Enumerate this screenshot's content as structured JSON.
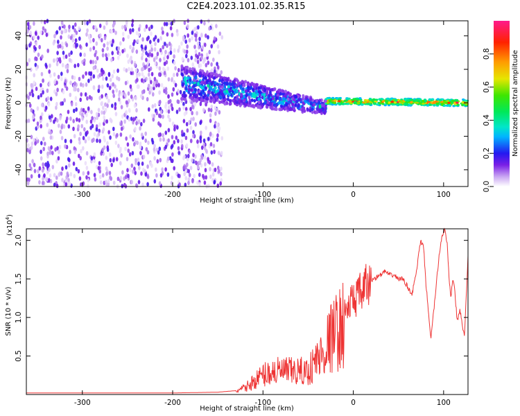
{
  "title": "C2E4.2023.101.02.35.R15",
  "chart_data": [
    {
      "type": "heatmap",
      "xlabel": "Height of straight line (km)",
      "ylabel": "Frequency (Hz)",
      "xlim": [
        -362,
        127
      ],
      "ylim": [
        -50,
        49
      ],
      "xticks": [
        -300,
        -200,
        -100,
        0,
        100
      ],
      "xtick_labels": [
        "-300",
        "-200",
        "-100",
        "0",
        "100"
      ],
      "yticks": [
        -40,
        -20,
        0,
        20,
        40
      ],
      "ytick_labels": [
        "-40",
        "-20",
        "0",
        "20",
        "40"
      ],
      "colorbar": {
        "label": "Normalized spectral amplitude",
        "range": [
          0,
          1
        ],
        "ticks": [
          0.0,
          0.2,
          0.4,
          0.6,
          0.8
        ],
        "tick_labels": [
          "0.0",
          "0.2",
          "0.4",
          "0.6",
          "0.8"
        ],
        "colormap": "rainbow (white-purple-blue-cyan-green-yellow-orange-red-magenta)"
      },
      "regions": [
        {
          "description": "broadband noise",
          "x_range": [
            -362,
            -145
          ],
          "y_range": [
            -50,
            49
          ],
          "amplitude": [
            0.02,
            0.18
          ]
        },
        {
          "description": "scattered band",
          "x_range": [
            -190,
            -30
          ],
          "center_y": [
            12,
            -3
          ],
          "half_width_hz": [
            10,
            4
          ],
          "amplitude": [
            0.1,
            0.45
          ]
        },
        {
          "description": "narrow signal line",
          "x_range": [
            -30,
            127
          ],
          "center_y": [
            1,
            0
          ],
          "half_width_hz": [
            2,
            1.5
          ],
          "amplitude": [
            0.3,
            0.95
          ]
        }
      ]
    },
    {
      "type": "line",
      "xlabel": "Height of straight line (km)",
      "ylabel": "SNR (10 * v/v)",
      "y_multiplier": "(x10^4)",
      "xlim": [
        -362,
        127
      ],
      "ylim": [
        0,
        2.15
      ],
      "xticks": [
        -300,
        -200,
        -100,
        0,
        100
      ],
      "xtick_labels": [
        "-300",
        "-200",
        "-100",
        "0",
        "100"
      ],
      "yticks": [
        0.5,
        1.0,
        1.5,
        2.0
      ],
      "ytick_labels": [
        "0.5",
        "1.0",
        "1.5",
        "2.0"
      ],
      "color": "#ee3333",
      "x": [
        -362,
        -300,
        -200,
        -150,
        -130,
        -120,
        -110,
        -100,
        -90,
        -80,
        -70,
        -60,
        -50,
        -40,
        -35,
        -30,
        -25,
        -20,
        -15,
        -12,
        -10,
        -5,
        0,
        5,
        10,
        15,
        20,
        25,
        30,
        35,
        40,
        45,
        50,
        55,
        60,
        65,
        70,
        73,
        75,
        78,
        80,
        83,
        86,
        90,
        95,
        98,
        101,
        104,
        106,
        108,
        110,
        112,
        115,
        118,
        120,
        123,
        125,
        127
      ],
      "y": [
        0.02,
        0.02,
        0.02,
        0.03,
        0.05,
        0.1,
        0.2,
        0.3,
        0.35,
        0.35,
        0.35,
        0.35,
        0.35,
        0.55,
        0.6,
        0.75,
        0.85,
        0.95,
        1.0,
        1.05,
        1.1,
        1.2,
        1.3,
        1.35,
        1.4,
        1.5,
        1.48,
        1.52,
        1.55,
        1.6,
        1.55,
        1.55,
        1.5,
        1.5,
        1.4,
        1.3,
        1.6,
        1.88,
        1.98,
        1.9,
        1.5,
        1.1,
        0.72,
        1.2,
        1.8,
        2.05,
        2.15,
        1.95,
        1.5,
        1.25,
        1.5,
        1.4,
        0.95,
        1.1,
        0.95,
        0.75,
        1.25,
        1.8
      ]
    }
  ]
}
